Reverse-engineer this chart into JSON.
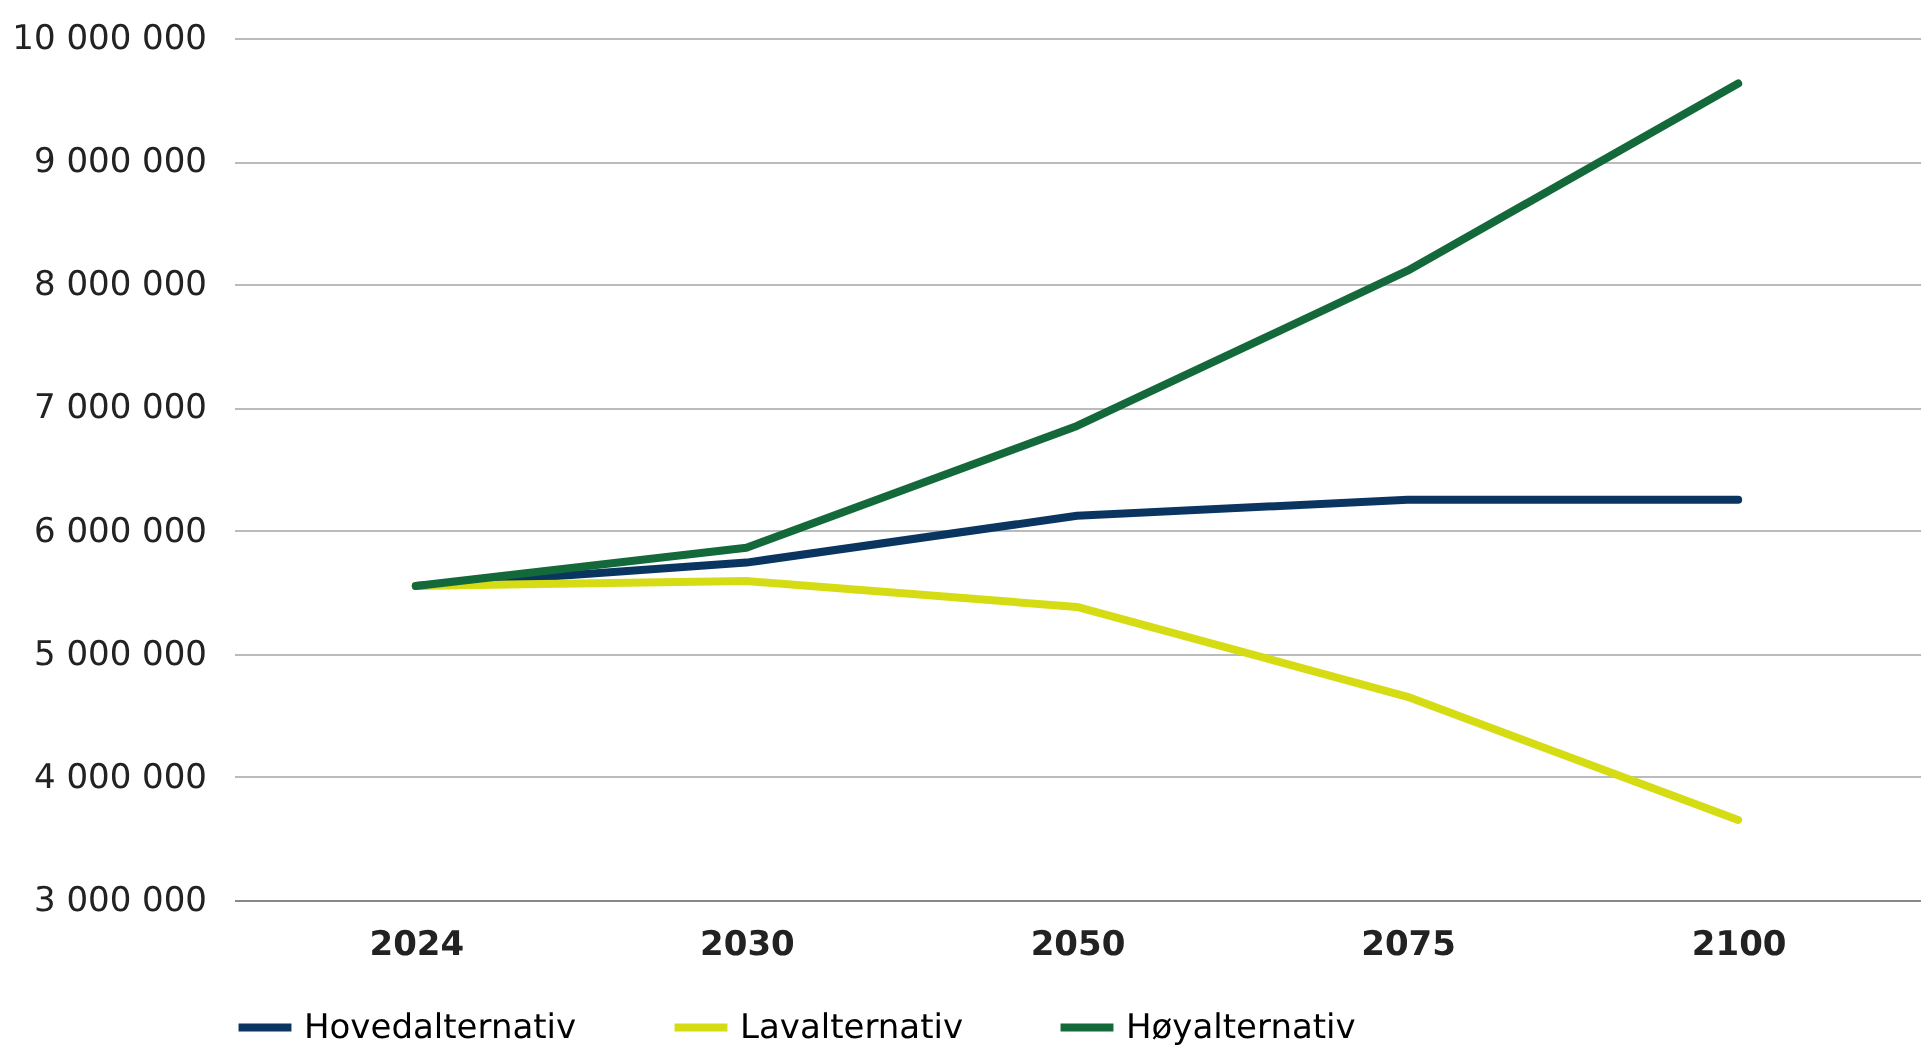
{
  "chart_data": {
    "type": "line",
    "categories": [
      "2024",
      "2030",
      "2050",
      "2075",
      "2100"
    ],
    "series": [
      {
        "name": "Hovedalternativ",
        "color": "#0a3560",
        "values": [
          5550000,
          5740000,
          6120000,
          6250000,
          6250000
        ]
      },
      {
        "name": "Lavalternativ",
        "color": "#d6dc14",
        "values": [
          5550000,
          5590000,
          5380000,
          4650000,
          3650000
        ]
      },
      {
        "name": "Høyalternativ",
        "color": "#14693a",
        "values": [
          5550000,
          5860000,
          6850000,
          8110000,
          9630000
        ]
      }
    ],
    "ylim": [
      3000000,
      10000000
    ],
    "yticks": [
      {
        "value": 3000000,
        "label": "3 000 000"
      },
      {
        "value": 4000000,
        "label": "4 000 000"
      },
      {
        "value": 5000000,
        "label": "5 000 000"
      },
      {
        "value": 6000000,
        "label": "6 000 000"
      },
      {
        "value": 7000000,
        "label": "7 000 000"
      },
      {
        "value": 8000000,
        "label": "8 000 000"
      },
      {
        "value": 9000000,
        "label": "9 000 000"
      },
      {
        "value": 10000000,
        "label": "10 000 000"
      }
    ],
    "grid": "y",
    "legend": "bottom",
    "marker": "none",
    "line_style": "solid"
  }
}
